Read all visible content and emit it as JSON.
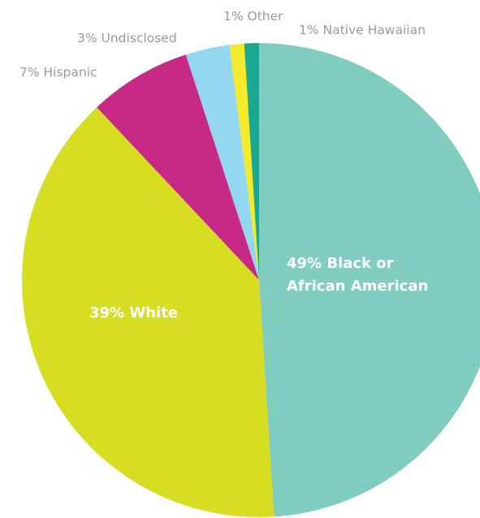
{
  "chart_data": {
    "type": "pie",
    "title": "",
    "start_angle_deg": 0,
    "direction": "clockwise",
    "slices": [
      {
        "label": "Black or African American",
        "value": 49,
        "color": "#80cdbf",
        "label_text": [
          "49% Black or",
          "African American"
        ],
        "label_position": "inside"
      },
      {
        "label": "White",
        "value": 39,
        "color": "#d6dd22",
        "label_text": [
          "39% White"
        ],
        "label_position": "inside"
      },
      {
        "label": "Hispanic",
        "value": 7,
        "color": "#c72a86",
        "label_text": [
          "7% Hispanic"
        ],
        "label_position": "outside"
      },
      {
        "label": "Undisclosed",
        "value": 3,
        "color": "#92d6f0",
        "label_text": [
          "3% Undisclosed"
        ],
        "label_position": "outside"
      },
      {
        "label": "Other",
        "value": 1,
        "color": "#f3ea2c",
        "label_text": [
          "1% Other"
        ],
        "label_position": "outside"
      },
      {
        "label": "Native Hawaiian",
        "value": 1,
        "color": "#1aa892",
        "label_text": [
          "1% Native Hawaiian"
        ],
        "label_position": "outside"
      }
    ]
  }
}
